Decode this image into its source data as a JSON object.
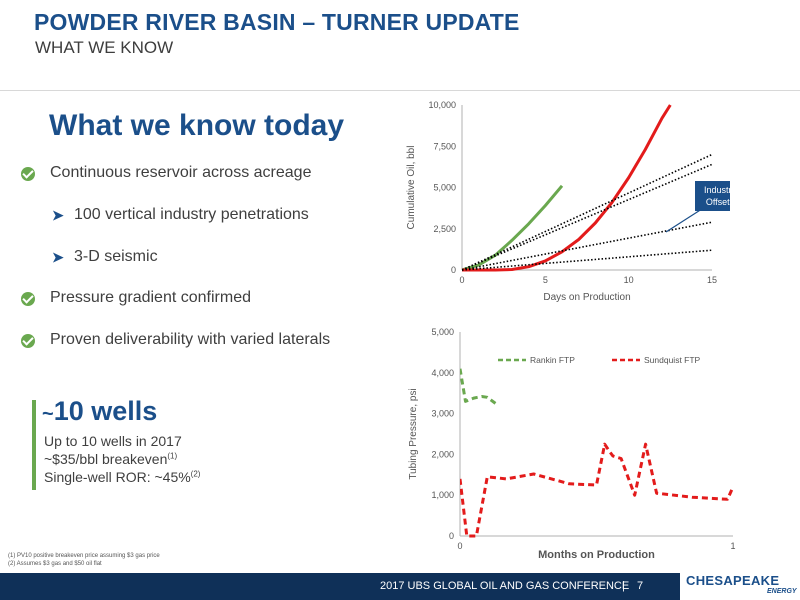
{
  "header": {
    "title": "POWDER RIVER BASIN – TURNER UPDATE",
    "subtitle": "WHAT WE KNOW"
  },
  "main": {
    "heading": "What we know today",
    "bullets": [
      "Continuous reservoir across acreage",
      "100 vertical industry penetrations",
      "3-D seismic",
      "Pressure gradient confirmed",
      "Proven deliverability with varied laterals"
    ],
    "wells": {
      "title_prefix": "~",
      "title_main": "10 wells",
      "line1": "Up to 10 wells in 2017",
      "line2": "~$35/bbl breakeven",
      "line2_sup": "(1)",
      "line3": "Single-well ROR: ~45%",
      "line3_sup": "(2)"
    }
  },
  "footnotes": [
    "(1)  PV10 positive breakeven price assuming $3 gas price",
    "(2)  Assumes $3 gas and $50 oil flat"
  ],
  "footer": {
    "conference": "2017 UBS GLOBAL OIL AND GAS CONFERENCE",
    "separator": "|",
    "page": "7",
    "logo_main": "CHESAPEAKE",
    "logo_sub": "ENERGY"
  },
  "colors": {
    "brand_blue": "#1b4f8a",
    "green": "#6aa84f",
    "red": "#e31b1b",
    "footer_bg": "#0f3058"
  },
  "chart_data": [
    {
      "type": "line",
      "title": "",
      "xlabel": "Days on Production",
      "ylabel": "Cumulative Oil, bbl",
      "xlim": [
        0,
        15
      ],
      "ylim": [
        0,
        10000
      ],
      "xticks": [
        "0",
        "5",
        "10",
        "15"
      ],
      "yticks": [
        "0",
        "2,500",
        "5,000",
        "7,500",
        "10,000"
      ],
      "grid": false,
      "callout": "Industry Offsets",
      "series": [
        {
          "color": "#6aa84f",
          "style": "solid",
          "x": [
            0,
            1,
            2,
            3,
            4,
            5,
            6
          ],
          "y": [
            0,
            300,
            900,
            1800,
            2800,
            3900,
            5100
          ]
        },
        {
          "color": "#e31b1b",
          "style": "solid",
          "x": [
            0,
            2,
            3,
            4,
            5,
            6,
            7,
            8,
            9,
            10,
            11,
            12,
            12.5
          ],
          "y": [
            0,
            0,
            30,
            200,
            550,
            1100,
            1850,
            2850,
            4100,
            5600,
            7300,
            9200,
            10000
          ]
        },
        {
          "color": "#000000",
          "style": "dotted",
          "x": [
            0,
            15
          ],
          "y": [
            0,
            7000
          ]
        },
        {
          "color": "#000000",
          "style": "dotted",
          "x": [
            0,
            15
          ],
          "y": [
            0,
            6400
          ]
        },
        {
          "color": "#000000",
          "style": "dotted",
          "x": [
            0,
            15
          ],
          "y": [
            0,
            2900
          ]
        },
        {
          "color": "#000000",
          "style": "dotted",
          "x": [
            0,
            15
          ],
          "y": [
            0,
            1200
          ]
        }
      ]
    },
    {
      "type": "line",
      "title": "",
      "xlabel": "Months on Production",
      "ylabel": "Tubing Pressure, psi",
      "xlim": [
        0,
        1
      ],
      "ylim": [
        0,
        5000
      ],
      "xticks": [
        "0",
        "1"
      ],
      "yticks": [
        "0",
        "1,000",
        "2,000",
        "3,000",
        "4,000",
        "5,000"
      ],
      "grid": false,
      "legend": "top",
      "series": [
        {
          "name": "Rankin FTP",
          "color": "#6aa84f",
          "style": "dashed",
          "x": [
            0,
            0.02,
            0.05,
            0.08,
            0.1,
            0.13
          ],
          "y": [
            4100,
            3300,
            3380,
            3420,
            3400,
            3250
          ]
        },
        {
          "name": "Sundquist FTP",
          "color": "#e31b1b",
          "style": "dashed",
          "x": [
            0,
            0.025,
            0.06,
            0.1,
            0.17,
            0.27,
            0.4,
            0.5,
            0.53,
            0.55,
            0.56,
            0.59,
            0.64,
            0.68,
            0.72,
            0.85,
            0.98,
            1.0
          ],
          "y": [
            1400,
            0,
            0,
            1450,
            1400,
            1520,
            1280,
            1250,
            2250,
            2050,
            1960,
            1900,
            1000,
            2250,
            1050,
            950,
            900,
            1200
          ]
        }
      ]
    }
  ]
}
